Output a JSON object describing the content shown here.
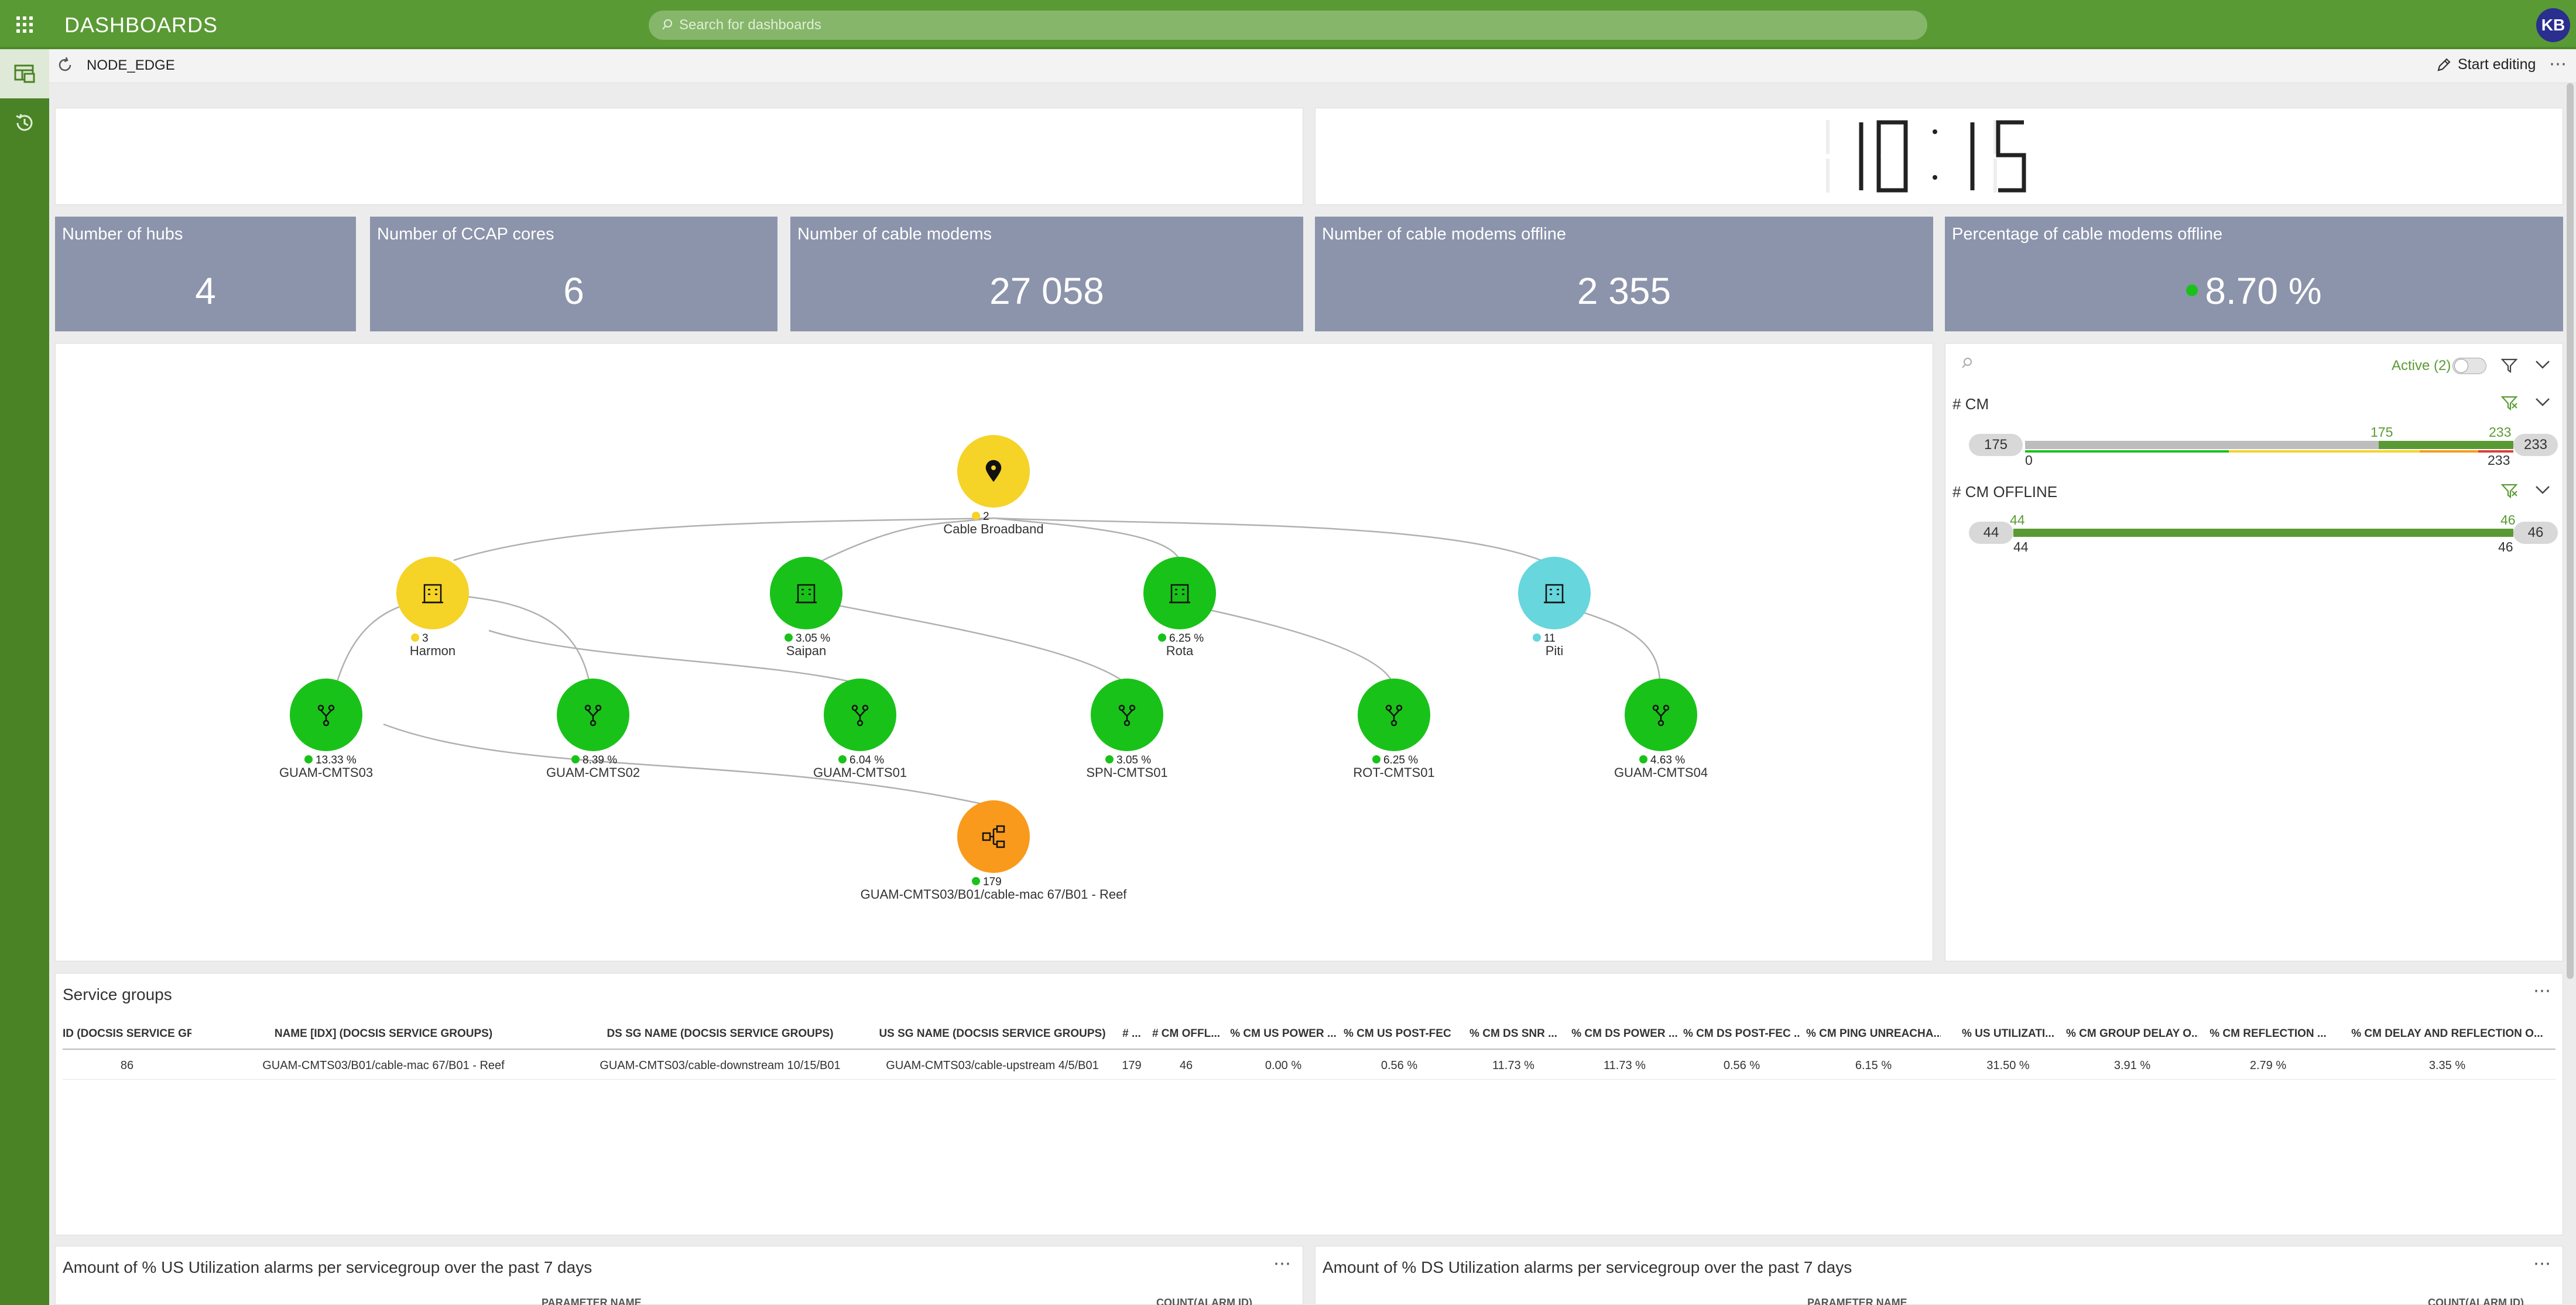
{
  "app": {
    "title": "DASHBOARDS",
    "search_placeholder": "Search for dashboards",
    "avatar_initials": "KB"
  },
  "toolbar": {
    "dashboard_name": "NODE_EDGE",
    "start_editing": "Start editing",
    "more": "⋯"
  },
  "clock": {
    "hours": "10",
    "minutes": "15"
  },
  "kpis": [
    {
      "title": "Number of hubs",
      "value": "4"
    },
    {
      "title": "Number of CCAP cores",
      "value": "6"
    },
    {
      "title": "Number of cable modems",
      "value": "27 058"
    },
    {
      "title": "Number of cable modems offline",
      "value": "2 355"
    },
    {
      "title": "Percentage of cable modems offline",
      "value": "8.70 %",
      "status_color": "#19c219"
    }
  ],
  "topology": {
    "root": {
      "label": "Cable Broadband",
      "badge": "2",
      "color": "#f5d327"
    },
    "hubs": [
      {
        "label": "Harmon",
        "badge": "3",
        "color": "#f5d327"
      },
      {
        "label": "Saipan",
        "badge": "3.05 %",
        "color": "#19c219"
      },
      {
        "label": "Rota",
        "badge": "6.25 %",
        "color": "#19c219"
      },
      {
        "label": "Piti",
        "badge": "11",
        "color": "#67d6dd"
      }
    ],
    "cores": [
      {
        "label": "GUAM-CMTS03",
        "badge": "13.33 %"
      },
      {
        "label": "GUAM-CMTS02",
        "badge": "8.39 %"
      },
      {
        "label": "GUAM-CMTS01",
        "badge": "6.04 %"
      },
      {
        "label": "SPN-CMTS01",
        "badge": "3.05 %"
      },
      {
        "label": "ROT-CMTS01",
        "badge": "6.25 %"
      },
      {
        "label": "GUAM-CMTS04",
        "badge": "4.63 %"
      }
    ],
    "service_group": {
      "label": "GUAM-CMTS03/B01/cable-mac 67/B01 - Reef",
      "badge": "179",
      "color": "#f99a1c"
    }
  },
  "filters": {
    "active_label": "Active (2)",
    "cm": {
      "title": "# CM",
      "min": "175",
      "max": "233",
      "selected_low": "175",
      "selected_high": "233",
      "axis_low": "0",
      "axis_high": "233"
    },
    "cm_offline": {
      "title": "# CM OFFLINE",
      "min": "44",
      "max": "46",
      "selected_low": "44",
      "selected_high": "46",
      "axis_low": "44",
      "axis_high": "46"
    }
  },
  "service_groups": {
    "title": "Service groups",
    "columns": [
      "ID (DOCSIS SERVICE GROU...",
      "NAME [IDX] (DOCSIS SERVICE GROUPS)",
      "DS SG NAME (DOCSIS SERVICE GROUPS)",
      "US SG NAME (DOCSIS SERVICE GROUPS)",
      "# ...",
      "# CM OFFL...",
      "% CM US POWER ...",
      "% CM US POST-FEC ...",
      "% CM DS SNR ...",
      "% CM DS POWER ...",
      "% CM DS POST-FEC ...",
      "% CM PING UNREACHA...",
      "% US UTILIZATI...",
      "% CM GROUP DELAY O...",
      "% CM REFLECTION ...",
      "% CM DELAY AND REFLECTION O..."
    ],
    "rows": [
      [
        "86",
        "GUAM-CMTS03/B01/cable-mac 67/B01 - Reef",
        "GUAM-CMTS03/cable-downstream 10/15/B01",
        "GUAM-CMTS03/cable-upstream 4/5/B01",
        "179",
        "46",
        "0.00 %",
        "0.56 %",
        "11.73 %",
        "11.73 %",
        "0.56 %",
        "6.15 %",
        "31.50 %",
        "3.91 %",
        "2.79 %",
        "3.35 %"
      ]
    ]
  },
  "bottom_panels": [
    {
      "title": "Amount of % US Utilization alarms per servicegroup over the past 7 days",
      "col1": "PARAMETER NAME",
      "col2": "COUNT(ALARM ID)"
    },
    {
      "title": "Amount of % DS Utilization alarms per servicegroup over the past 7 days",
      "col1": "PARAMETER NAME",
      "col2": "COUNT(ALARM ID)"
    }
  ]
}
